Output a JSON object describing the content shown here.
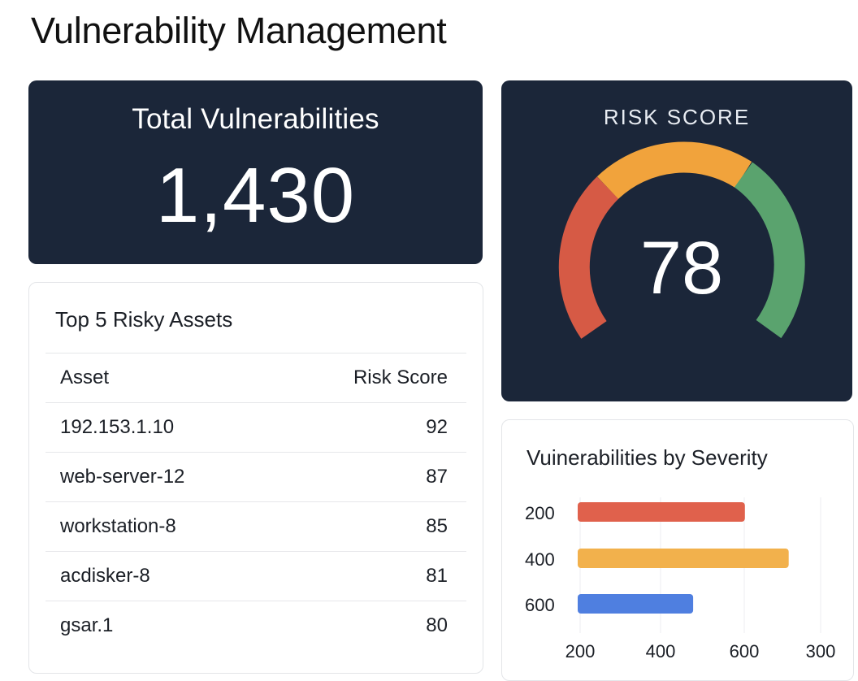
{
  "page": {
    "title": "Vulnerability Management"
  },
  "total": {
    "label": "Total Vulnerabilities",
    "value": "1,430"
  },
  "risk": {
    "label": "RISK SCORE",
    "value": "78",
    "colors": {
      "low": "#d65a45",
      "mid": "#f1a33c",
      "high": "#5aa36e"
    }
  },
  "assets": {
    "title": "Top 5 Risky Assets",
    "columns": [
      "Asset",
      "Risk Score"
    ],
    "rows": [
      {
        "asset": "192.153.1.10",
        "score": "92"
      },
      {
        "asset": "web-server-12",
        "score": "87"
      },
      {
        "asset": "workstation-8",
        "score": "85"
      },
      {
        "asset": "acdisker-8",
        "score": "81"
      },
      {
        "asset": "gsar.1",
        "score": "80"
      }
    ]
  },
  "severity": {
    "title": "Vuinerabilities by Severity",
    "chart_data": {
      "type": "bar",
      "orientation": "horizontal",
      "categories": [
        "200",
        "400",
        "600"
      ],
      "values": [
        620,
        730,
        490
      ],
      "colors": [
        "#e0614c",
        "#f2b14c",
        "#4f7fe0"
      ],
      "x_ticks": [
        "200",
        "400",
        "600",
        "300"
      ],
      "grid": true
    }
  }
}
